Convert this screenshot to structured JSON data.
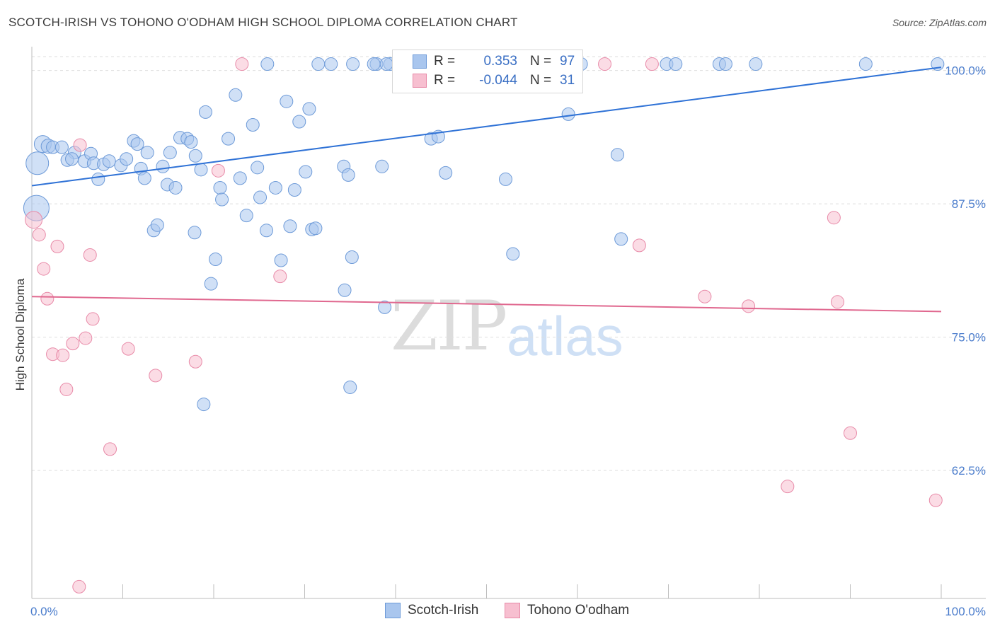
{
  "title": "SCOTCH-IRISH VS TOHONO O'ODHAM HIGH SCHOOL DIPLOMA CORRELATION CHART",
  "source": "Source: ZipAtlas.com",
  "watermark": {
    "zip": "ZIP",
    "atlas": "atlas"
  },
  "legend": {
    "rows": [
      {
        "r_label": "R =",
        "r_value": "0.353",
        "n_label": "N =",
        "n_value": "97",
        "color": "#a9c6ee",
        "stroke": "#6d9ad8"
      },
      {
        "r_label": "R =",
        "r_value": "-0.044",
        "n_label": "N =",
        "n_value": "31",
        "color": "#f7bfd0",
        "stroke": "#e88aa8"
      }
    ]
  },
  "bottom_legend": [
    {
      "label": "Scotch-Irish",
      "color": "#a9c6ee",
      "stroke": "#6d9ad8"
    },
    {
      "label": "Tohono O'odham",
      "color": "#f7bfd0",
      "stroke": "#e88aa8"
    }
  ],
  "chart_data": {
    "type": "scatter",
    "title": "SCOTCH-IRISH VS TOHONO O'ODHAM HIGH SCHOOL DIPLOMA CORRELATION CHART",
    "xlabel": "",
    "ylabel": "High School Diploma",
    "xlim": [
      0,
      100
    ],
    "ylim": [
      50.5,
      101.3
    ],
    "x_tick_labels": [
      {
        "value": 0,
        "label": "0.0%"
      },
      {
        "value": 100,
        "label": "100.0%"
      }
    ],
    "y_tick_labels": [
      {
        "value": 100,
        "label": "100.0%"
      },
      {
        "value": 87.5,
        "label": "87.5%"
      },
      {
        "value": 75,
        "label": "75.0%"
      },
      {
        "value": 62.5,
        "label": "62.5%"
      }
    ],
    "grid": "horizontal dashed",
    "series": [
      {
        "name": "Scotch-Irish",
        "color": "#a9c6ee",
        "stroke": "#6d9ad8",
        "trend_color": "#2f72d6",
        "trend": {
          "x": [
            0,
            100
          ],
          "y": [
            89.2,
            100.3
          ]
        },
        "points": [
          [
            0.6,
            91.3,
            16
          ],
          [
            0.5,
            87.1,
            18
          ],
          [
            1.2,
            93.1,
            12
          ],
          [
            1.8,
            92.9,
            10
          ],
          [
            2.3,
            92.8,
            9
          ],
          [
            3.3,
            92.8,
            9
          ],
          [
            4.7,
            92.3,
            9
          ],
          [
            3.9,
            91.6,
            9
          ],
          [
            4.4,
            91.7,
            9
          ],
          [
            5.8,
            91.5,
            9
          ],
          [
            6.5,
            92.2,
            9
          ],
          [
            6.8,
            91.3,
            9
          ],
          [
            7.9,
            91.2,
            9
          ],
          [
            8.5,
            91.5,
            9
          ],
          [
            9.8,
            91.1,
            9
          ],
          [
            10.4,
            91.7,
            9
          ],
          [
            7.3,
            89.8,
            9
          ],
          [
            11.2,
            93.4,
            9
          ],
          [
            11.6,
            93.1,
            9
          ],
          [
            12.7,
            92.3,
            9
          ],
          [
            12.0,
            90.8,
            9
          ],
          [
            12.4,
            89.9,
            9
          ],
          [
            14.4,
            91.0,
            9
          ],
          [
            15.2,
            92.3,
            9
          ],
          [
            14.9,
            89.3,
            9
          ],
          [
            15.8,
            89.0,
            9
          ],
          [
            16.3,
            93.7,
            9
          ],
          [
            17.1,
            93.6,
            9
          ],
          [
            17.5,
            93.3,
            9
          ],
          [
            18.6,
            90.7,
            9
          ],
          [
            19.1,
            96.1,
            9
          ],
          [
            20.7,
            89.0,
            9
          ],
          [
            20.9,
            87.9,
            9
          ],
          [
            21.6,
            93.6,
            9
          ],
          [
            22.4,
            97.7,
            9
          ],
          [
            22.9,
            89.9,
            9
          ],
          [
            23.6,
            86.4,
            9
          ],
          [
            24.3,
            94.9,
            9
          ],
          [
            24.8,
            90.9,
            9
          ],
          [
            25.8,
            85.0,
            9
          ],
          [
            26.8,
            89.0,
            9
          ],
          [
            27.4,
            82.2,
            9
          ],
          [
            28.0,
            97.1,
            9
          ],
          [
            28.9,
            88.8,
            9
          ],
          [
            28.4,
            85.4,
            9
          ],
          [
            29.4,
            95.2,
            9
          ],
          [
            30.1,
            90.5,
            9
          ],
          [
            30.5,
            96.4,
            9
          ],
          [
            30.8,
            85.1,
            9
          ],
          [
            31.2,
            85.2,
            9
          ],
          [
            17.9,
            84.8,
            9
          ],
          [
            13.4,
            85.0,
            9
          ],
          [
            13.8,
            85.5,
            9
          ],
          [
            20.2,
            82.3,
            9
          ],
          [
            19.7,
            80.0,
            9
          ],
          [
            34.3,
            91.0,
            9
          ],
          [
            34.8,
            90.2,
            9
          ],
          [
            35.2,
            82.5,
            9
          ],
          [
            35.0,
            70.3,
            9
          ],
          [
            38.5,
            91.0,
            9
          ],
          [
            38.8,
            77.8,
            9
          ],
          [
            34.4,
            79.4,
            9
          ],
          [
            43.9,
            93.6,
            9
          ],
          [
            44.7,
            93.8,
            9
          ],
          [
            45.5,
            90.4,
            9
          ],
          [
            52.1,
            89.8,
            9
          ],
          [
            52.9,
            82.8,
            9
          ],
          [
            59.0,
            95.9,
            9
          ],
          [
            64.8,
            84.2,
            9
          ],
          [
            64.4,
            92.1,
            9
          ],
          [
            18.9,
            68.7,
            9
          ],
          [
            25.9,
            100.6,
            9
          ],
          [
            31.5,
            100.6,
            9
          ],
          [
            32.9,
            100.6,
            9
          ],
          [
            35.3,
            100.6,
            9
          ],
          [
            37.9,
            100.6,
            9
          ],
          [
            39.4,
            100.6,
            9
          ],
          [
            41.8,
            100.6,
            9
          ],
          [
            43.6,
            100.6,
            9
          ],
          [
            45.3,
            100.6,
            9
          ],
          [
            49.8,
            100.6,
            9
          ],
          [
            53.2,
            100.6,
            9
          ],
          [
            56.3,
            100.6,
            9
          ],
          [
            60.4,
            100.6,
            9
          ],
          [
            69.8,
            100.6,
            9
          ],
          [
            75.6,
            100.6,
            9
          ],
          [
            76.3,
            100.6,
            9
          ],
          [
            79.6,
            100.6,
            9
          ],
          [
            91.7,
            100.6,
            9
          ],
          [
            99.6,
            100.6,
            9
          ],
          [
            37.6,
            100.6,
            9
          ],
          [
            39.0,
            100.6,
            9
          ],
          [
            46.9,
            100.6,
            9
          ],
          [
            47.7,
            100.6,
            9
          ],
          [
            70.8,
            100.6,
            9
          ],
          [
            18.0,
            92.0,
            9
          ],
          [
            25.1,
            88.1,
            9
          ]
        ]
      },
      {
        "name": "Tohono O'odham",
        "color": "#f7bfd0",
        "stroke": "#e88aa8",
        "trend_color": "#e0688f",
        "trend": {
          "x": [
            0,
            100
          ],
          "y": [
            78.8,
            77.4
          ]
        },
        "points": [
          [
            0.2,
            86.0,
            12
          ],
          [
            0.8,
            84.6,
            9
          ],
          [
            1.3,
            81.4,
            9
          ],
          [
            1.7,
            78.6,
            9
          ],
          [
            2.3,
            73.4,
            9
          ],
          [
            2.8,
            83.5,
            9
          ],
          [
            3.4,
            73.3,
            9
          ],
          [
            3.8,
            70.1,
            9
          ],
          [
            4.5,
            74.4,
            9
          ],
          [
            5.3,
            93.0,
            9
          ],
          [
            5.9,
            74.9,
            9
          ],
          [
            6.4,
            82.7,
            9
          ],
          [
            6.7,
            76.7,
            9
          ],
          [
            8.6,
            64.5,
            9
          ],
          [
            10.6,
            73.9,
            9
          ],
          [
            13.6,
            71.4,
            9
          ],
          [
            18.0,
            72.7,
            9
          ],
          [
            20.5,
            90.6,
            9
          ],
          [
            23.1,
            100.6,
            9
          ],
          [
            27.3,
            80.7,
            9
          ],
          [
            5.2,
            51.6,
            9
          ],
          [
            68.2,
            100.6,
            9
          ],
          [
            66.8,
            83.6,
            9
          ],
          [
            74.0,
            78.8,
            9
          ],
          [
            78.8,
            77.9,
            9
          ],
          [
            83.1,
            61.0,
            9
          ],
          [
            88.2,
            86.2,
            9
          ],
          [
            88.6,
            78.3,
            9
          ],
          [
            90.0,
            66.0,
            9
          ],
          [
            99.4,
            59.7,
            9
          ],
          [
            63.0,
            100.6,
            9
          ]
        ]
      }
    ]
  }
}
